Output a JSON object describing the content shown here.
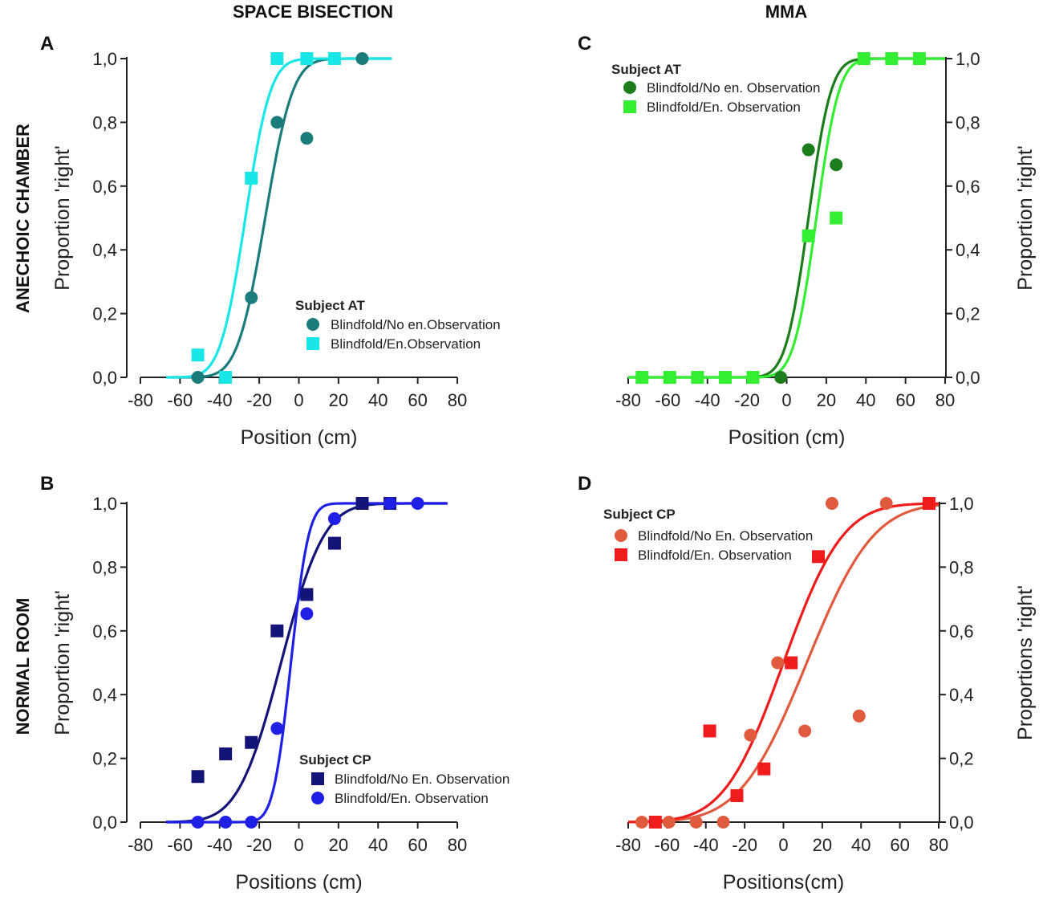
{
  "column_titles": [
    "SPACE BISECTION",
    "MMA"
  ],
  "row_titles": [
    "ANECHOIC CHAMBER",
    "NORMAL ROOM"
  ],
  "chart_data": [
    {
      "panel": "A",
      "type": "scatter",
      "xlabel": "Position (cm)",
      "ylabel": "Proportion 'right'",
      "xlim": [
        -80,
        80
      ],
      "ylim": [
        0,
        1
      ],
      "xticks": [
        "-80",
        "-60",
        "-40",
        "-20",
        "0",
        "20",
        "40",
        "60",
        "80"
      ],
      "yticks": [
        "0,0",
        "0,2",
        "0,4",
        "0,6",
        "0,8",
        "1,0"
      ],
      "legend_title": "Subject AT",
      "series": [
        {
          "name": "Blindfold/No en.Observation",
          "marker": "circle",
          "color": "#1b7c7c",
          "x": [
            -51,
            -24,
            -11,
            4,
            32
          ],
          "y": [
            0.0,
            0.25,
            0.8,
            0.75,
            1.0
          ],
          "fit": {
            "mu": -17,
            "sigma": 11,
            "x_range": [
              -64,
              47
            ]
          }
        },
        {
          "name": "Blindfold/En.Observation",
          "marker": "square",
          "color": "#19e6e6",
          "x": [
            -51,
            -37,
            -24,
            -11,
            4,
            18
          ],
          "y": [
            0.07,
            0.0,
            0.625,
            1.0,
            1.0,
            1.0
          ],
          "fit": {
            "mu": -27,
            "sigma": 10,
            "x_range": [
              -67,
              47
            ]
          }
        }
      ]
    },
    {
      "panel": "B",
      "type": "scatter",
      "xlabel": "Positions (cm)",
      "ylabel": "Proportion 'right'",
      "xlim": [
        -80,
        80
      ],
      "ylim": [
        0,
        1
      ],
      "xticks": [
        "-80",
        "-60",
        "-40",
        "-20",
        "0",
        "20",
        "40",
        "60",
        "80"
      ],
      "yticks": [
        "0,0",
        "0,2",
        "0,4",
        "0,6",
        "0,8",
        "1,0"
      ],
      "legend_title": "Subject CP",
      "series": [
        {
          "name": "Blindfold/No En. Observation",
          "marker": "square",
          "color": "#141478",
          "x": [
            -51,
            -37,
            -24,
            -11,
            4,
            18,
            32,
            46
          ],
          "y": [
            0.143,
            0.214,
            0.25,
            0.6,
            0.714,
            0.875,
            1.0,
            1.0
          ],
          "fit": {
            "mu": -9,
            "sigma": 17,
            "x_range": [
              -67,
              75
            ]
          }
        },
        {
          "name": "Blindfold/En. Observation",
          "marker": "circle",
          "color": "#1f1fe6",
          "x": [
            -51,
            -37,
            -24,
            -11,
            4,
            18,
            46,
            60
          ],
          "y": [
            0.0,
            0.0,
            0.0,
            0.294,
            0.654,
            0.952,
            1.0,
            1.0
          ],
          "fit": {
            "mu": -4,
            "sigma": 7,
            "x_range": [
              -67,
              75
            ]
          }
        }
      ]
    },
    {
      "panel": "C",
      "type": "scatter",
      "xlabel": "Position (cm)",
      "ylabel": "Proportion 'right'",
      "xlim": [
        -80,
        80
      ],
      "ylim": [
        0,
        1
      ],
      "xticks": [
        "-80",
        "-60",
        "-40",
        "-20",
        "0",
        "20",
        "40",
        "60",
        "80"
      ],
      "yticks": [
        "0,0",
        "0,2",
        "0,4",
        "0,6",
        "0,8",
        "1,0"
      ],
      "legend_title": "Subject AT",
      "series": [
        {
          "name": "Blindfold/No en. Observation",
          "marker": "circle",
          "color": "#1c7d1c",
          "x": [
            -73,
            -59,
            -45,
            -31,
            -17,
            -3,
            11,
            25,
            39,
            53,
            67
          ],
          "y": [
            0.0,
            0.0,
            0.0,
            0.0,
            0.0,
            0.0,
            0.714,
            0.667,
            1.0,
            1.0,
            1.0
          ],
          "fit": {
            "mu": 11,
            "sigma": 9,
            "x_range": [
              -80,
              80
            ]
          }
        },
        {
          "name": "Blindfold/En. Observation",
          "marker": "square",
          "color": "#33ee33",
          "x": [
            -73,
            -59,
            -45,
            -31,
            -17,
            11,
            25,
            39,
            53,
            67
          ],
          "y": [
            0.0,
            0.0,
            0.0,
            0.0,
            0.0,
            0.444,
            0.5,
            1.0,
            1.0,
            1.0
          ],
          "fit": {
            "mu": 15,
            "sigma": 9,
            "x_range": [
              -80,
              80
            ]
          }
        }
      ]
    },
    {
      "panel": "D",
      "type": "scatter",
      "xlabel": "Positions(cm)",
      "ylabel": "Proportions 'right'",
      "xlim": [
        -80,
        80
      ],
      "ylim": [
        0,
        1
      ],
      "xticks": [
        "-80",
        "-60",
        "-40",
        "-20",
        "0",
        "20",
        "40",
        "60",
        "80"
      ],
      "yticks": [
        "0,0",
        "0,2",
        "0,4",
        "0,6",
        "0,8",
        "1,0"
      ],
      "legend_title": "Subject CP",
      "series": [
        {
          "name": "Blindfold/No En. Observation",
          "marker": "circle",
          "color": "#e05a3e",
          "x": [
            -73,
            -59,
            -45,
            -31,
            -17,
            -3,
            11,
            25,
            39,
            53
          ],
          "y": [
            0.0,
            0.0,
            0.0,
            0.0,
            0.273,
            0.5,
            0.286,
            1.0,
            0.333,
            1.0
          ],
          "fit": {
            "mu": 12,
            "sigma": 27,
            "x_range": [
              -80,
              80
            ]
          }
        },
        {
          "name": "Blindfold/En. Observation",
          "marker": "square",
          "color": "#ee1c1c",
          "x": [
            -66,
            -38,
            -24,
            -10,
            4,
            18,
            75
          ],
          "y": [
            0.0,
            0.286,
            0.083,
            0.167,
            0.5,
            0.833,
            1.0
          ],
          "fit": {
            "mu": 0,
            "sigma": 24,
            "x_range": [
              -80,
              80
            ]
          }
        }
      ]
    }
  ]
}
